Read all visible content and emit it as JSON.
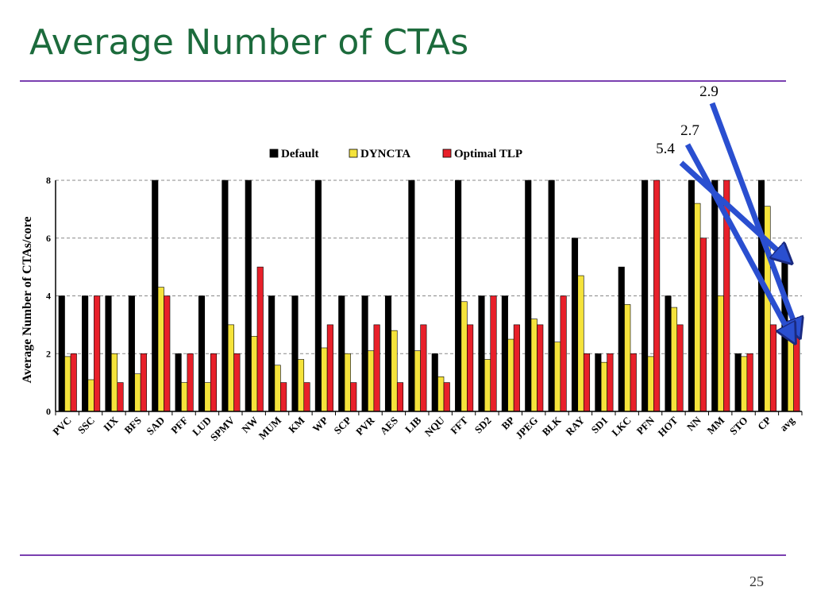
{
  "slide": {
    "title": "Average Number of CTAs",
    "page_number": "25"
  },
  "colors": {
    "title": "#1c6b3c",
    "rule": "#7a3fb0",
    "arrow": "#2a4fd0"
  },
  "chart_data": {
    "type": "bar",
    "title": "",
    "xlabel": "",
    "ylabel": "Average Number of CTAs/core",
    "ylim": [
      0,
      8
    ],
    "yticks": [
      0,
      2,
      4,
      6,
      8
    ],
    "grid": true,
    "legend_position": "top-center",
    "categories": [
      "PVC",
      "SSC",
      "IIX",
      "BFS",
      "SAD",
      "PFF",
      "LUD",
      "SPMV",
      "NW",
      "MUM",
      "KM",
      "WP",
      "SCP",
      "PVR",
      "AES",
      "LIB",
      "NQU",
      "FFT",
      "SD2",
      "BP",
      "JPEG",
      "BLK",
      "RAY",
      "SD1",
      "LKC",
      "PFN",
      "HOT",
      "NN",
      "MM",
      "STO",
      "CP",
      "avg"
    ],
    "series": [
      {
        "name": "Default",
        "color": "#000000",
        "values": [
          4,
          4,
          4,
          4,
          8,
          2,
          4,
          8,
          8,
          4,
          4,
          8,
          4,
          4,
          4,
          8,
          2,
          8,
          4,
          4,
          8,
          8,
          6,
          2,
          5,
          8,
          4,
          8,
          8,
          2,
          8,
          5.4
        ]
      },
      {
        "name": "DYNCTA",
        "color": "#f5e33b",
        "values": [
          1.9,
          1.1,
          2.0,
          1.3,
          4.3,
          1.0,
          1.0,
          3.0,
          2.6,
          1.6,
          1.8,
          2.2,
          2.0,
          2.1,
          2.8,
          2.1,
          1.2,
          3.8,
          1.8,
          2.5,
          3.2,
          2.4,
          4.7,
          1.7,
          3.7,
          1.9,
          3.6,
          7.2,
          4.0,
          1.9,
          7.1,
          2.7
        ]
      },
      {
        "name": "Optimal TLP",
        "color": "#e8202a",
        "values": [
          2,
          4,
          1,
          2,
          4,
          2,
          2,
          2,
          5,
          1,
          1,
          3,
          1,
          3,
          1,
          3,
          1,
          3,
          4,
          3,
          3,
          4,
          2,
          2,
          2,
          8,
          3,
          6,
          8,
          2,
          3,
          2.9
        ]
      }
    ],
    "annotations": [
      {
        "text": "2.9",
        "target_series": "Optimal TLP",
        "target_category": "avg"
      },
      {
        "text": "2.7",
        "target_series": "DYNCTA",
        "target_category": "avg"
      },
      {
        "text": "5.4",
        "target_series": "Default",
        "target_category": "avg"
      }
    ]
  }
}
